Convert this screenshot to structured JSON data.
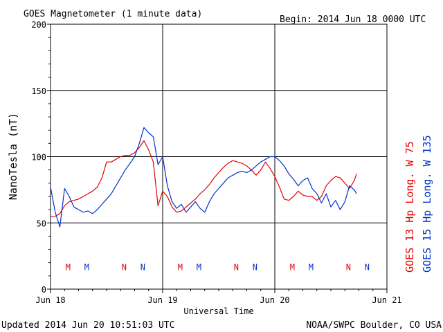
{
  "header": {
    "title": "GOES Magnetometer (1 minute data)",
    "begin": "Begin:  2014 Jun 18 0000 UTC"
  },
  "footer": {
    "updated": "Updated 2014 Jun 20 10:51:03 UTC",
    "source": "NOAA/SWPC Boulder, CO USA"
  },
  "colors": {
    "goes13": "#e60000",
    "goes15": "#0033cc",
    "grid": "#000000"
  },
  "chart_data": {
    "type": "line",
    "title": "GOES Magnetometer (1 minute data)",
    "xlabel": "Universal Time",
    "ylabel": "NanoTesla (nT)",
    "ylim": [
      0,
      200
    ],
    "xlim": [
      0,
      72
    ],
    "x_unit": "hours since 2014 Jun 18 0000 UTC",
    "grid": true,
    "y_ticks": [
      0,
      50,
      100,
      150,
      200
    ],
    "x_ticks": [
      {
        "x": 0,
        "label": "Jun 18"
      },
      {
        "x": 24,
        "label": "Jun 19"
      },
      {
        "x": 48,
        "label": "Jun 20"
      },
      {
        "x": 72,
        "label": "Jun 21"
      }
    ],
    "series": [
      {
        "name": "GOES 13 Hp  Long. W 75",
        "color": "#e60000",
        "x": [
          0,
          1,
          2,
          3,
          4,
          5,
          6,
          7,
          8,
          9,
          10,
          11,
          12,
          13,
          14,
          15,
          16,
          17,
          18,
          19,
          20,
          21,
          22,
          23,
          24,
          25,
          26,
          27,
          28,
          29,
          30,
          31,
          32,
          33,
          34,
          35,
          36,
          37,
          38,
          39,
          40,
          41,
          42,
          43,
          44,
          45,
          46,
          47,
          48,
          49,
          50,
          51,
          52,
          53,
          54,
          55,
          56,
          57,
          58,
          59,
          60,
          61,
          62,
          63,
          64,
          65,
          65.5
        ],
        "values": [
          55,
          55,
          57,
          63,
          66,
          67,
          68,
          70,
          72,
          74,
          77,
          84,
          96,
          96,
          98,
          100,
          101,
          101,
          103,
          107,
          112,
          105,
          96,
          63,
          74,
          70,
          62,
          58,
          59,
          62,
          65,
          68,
          72,
          75,
          79,
          84,
          88,
          92,
          95,
          97,
          96,
          95,
          93,
          90,
          86,
          90,
          96,
          91,
          85,
          77,
          68,
          67,
          70,
          74,
          71,
          70,
          70,
          67,
          70,
          78,
          82,
          85,
          84,
          80,
          76,
          82,
          87
        ]
      },
      {
        "name": "GOES 15 Hp  Long. W 135",
        "color": "#0033cc",
        "x": [
          0,
          1,
          2,
          3,
          4,
          5,
          6,
          7,
          8,
          9,
          10,
          11,
          12,
          13,
          14,
          15,
          16,
          17,
          18,
          19,
          20,
          21,
          22,
          23,
          24,
          25,
          26,
          27,
          28,
          29,
          30,
          31,
          32,
          33,
          34,
          35,
          36,
          37,
          38,
          39,
          40,
          41,
          42,
          43,
          44,
          45,
          46,
          47,
          48,
          49,
          50,
          51,
          52,
          53,
          54,
          55,
          56,
          57,
          58,
          59,
          60,
          61,
          62,
          63,
          64,
          65,
          65.5
        ],
        "values": [
          77,
          58,
          47,
          76,
          70,
          62,
          60,
          58,
          59,
          57,
          60,
          64,
          68,
          72,
          78,
          84,
          90,
          95,
          100,
          110,
          122,
          118,
          115,
          94,
          100,
          78,
          66,
          61,
          64,
          58,
          62,
          66,
          61,
          58,
          66,
          72,
          76,
          80,
          84,
          86,
          88,
          89,
          88,
          90,
          93,
          96,
          98,
          100,
          100,
          97,
          93,
          87,
          83,
          78,
          82,
          84,
          76,
          72,
          65,
          72,
          62,
          67,
          60,
          66,
          78,
          75,
          72
        ]
      }
    ],
    "annotations": [
      {
        "x": 3.75,
        "label": "M",
        "color": "#e60000"
      },
      {
        "x": 7.75,
        "label": "M",
        "color": "#0033cc"
      },
      {
        "x": 15.75,
        "label": "N",
        "color": "#e60000"
      },
      {
        "x": 19.75,
        "label": "N",
        "color": "#0033cc"
      },
      {
        "x": 27.75,
        "label": "M",
        "color": "#e60000"
      },
      {
        "x": 31.75,
        "label": "M",
        "color": "#0033cc"
      },
      {
        "x": 39.75,
        "label": "N",
        "color": "#e60000"
      },
      {
        "x": 43.75,
        "label": "N",
        "color": "#0033cc"
      },
      {
        "x": 51.75,
        "label": "M",
        "color": "#e60000"
      },
      {
        "x": 55.75,
        "label": "M",
        "color": "#0033cc"
      },
      {
        "x": 63.75,
        "label": "N",
        "color": "#e60000"
      },
      {
        "x": 67.75,
        "label": "N",
        "color": "#0033cc"
      }
    ],
    "annotation_level": 17
  }
}
